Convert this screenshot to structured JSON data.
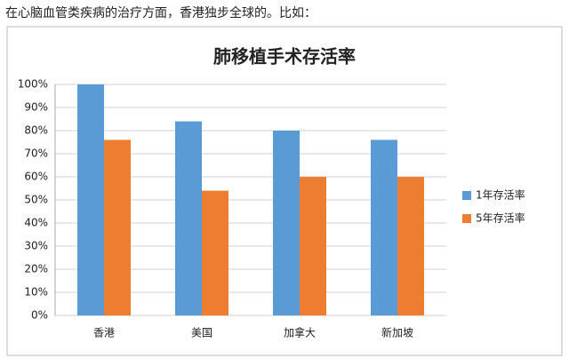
{
  "intro": "在心脑血管类疾病的治疗方面，香港独步全球的。比如：",
  "chart_data": {
    "type": "bar",
    "title": "肺移植手术存活率",
    "categories": [
      "香港",
      "美国",
      "加拿大",
      "新加坡"
    ],
    "series": [
      {
        "name": "1年存活率",
        "color": "#5b9bd5",
        "values": [
          100,
          84,
          80,
          76
        ]
      },
      {
        "name": "5年存活率",
        "color": "#ed7d31",
        "values": [
          76,
          54,
          60,
          60
        ]
      }
    ],
    "ylim": [
      0,
      100
    ],
    "yticks": [
      {
        "value": 0,
        "label": "0%"
      },
      {
        "value": 10,
        "label": "10%"
      },
      {
        "value": 20,
        "label": "20%"
      },
      {
        "value": 30,
        "label": "30%"
      },
      {
        "value": 40,
        "label": "40%"
      },
      {
        "value": 50,
        "label": "50%"
      },
      {
        "value": 60,
        "label": "60%"
      },
      {
        "value": 70,
        "label": "70%"
      },
      {
        "value": 80,
        "label": "80%"
      },
      {
        "value": 90,
        "label": "90%"
      },
      {
        "value": 100,
        "label": "100%"
      }
    ],
    "grid": true,
    "legend": "right"
  }
}
